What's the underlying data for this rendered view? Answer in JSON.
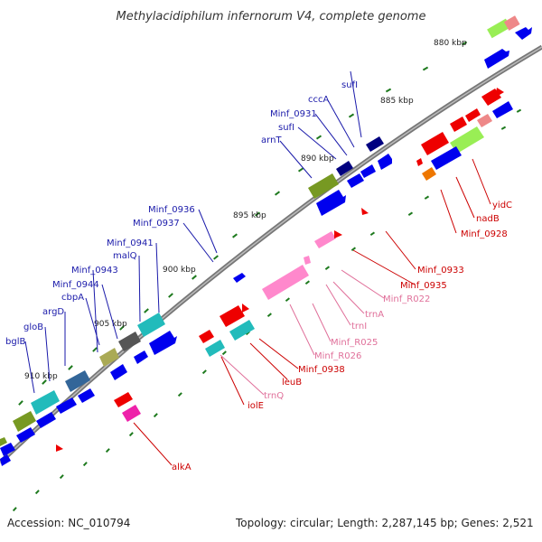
{
  "title": "Methylacidiphilum infernorum V4, complete genome",
  "accession": "Accession: NC_010794",
  "summary": "Topology: circular; Length: 2,287,145 bp; Genes: 2,521",
  "colors": {
    "forward": "#0000ee",
    "reverse": "#ee0000",
    "label_forward": "#1a1aaa",
    "label_reverse": "#cc0000",
    "label_rna": "#e0709a",
    "tick": "#1e7a1e",
    "backbone": "#808080"
  },
  "ticks": [
    "880 kbp",
    "885 kbp",
    "890 kbp",
    "895 kbp",
    "900 kbp",
    "905 kbp",
    "910 kbp"
  ],
  "forward_labels": [
    "sufI",
    "cccA",
    "Minf_0931",
    "sufI",
    "arnT",
    "Minf_0936",
    "Minf_0937",
    "Minf_0941",
    "malQ",
    "Minf_0943",
    "Minf_0944",
    "cbpA",
    "argD",
    "gloB",
    "bglB"
  ],
  "reverse_labels": [
    "yidC",
    "nadB",
    "Minf_0928",
    "Minf_0933",
    "Minf_0935",
    "iolE",
    "leuB",
    "Minf_0938",
    "alkA"
  ],
  "rna_labels": [
    "Minf_R022",
    "trnA",
    "trnI",
    "Minf_R025",
    "Minf_R026",
    "trnQ"
  ]
}
